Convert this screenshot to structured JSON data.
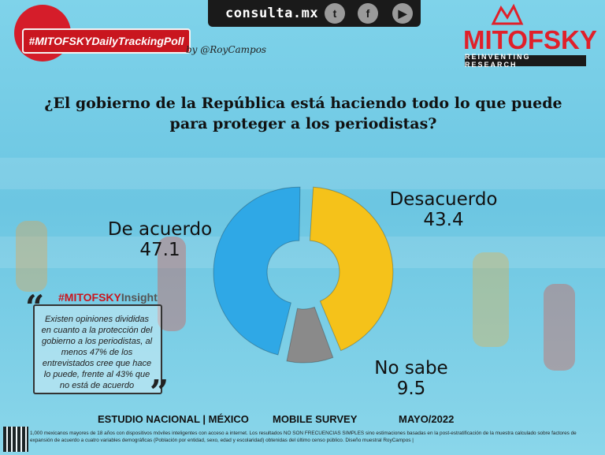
{
  "header": {
    "site": "consulta.mx",
    "social_icons": [
      "twitter-icon",
      "facebook-icon",
      "youtube-icon"
    ],
    "hashtag": "#MITOFSKYDailyTrackingPoll",
    "byline": "by @RoyCampos",
    "logo": "MITOFSKY",
    "logo_sub": "REINVENTING RESEARCH"
  },
  "chart_data": {
    "type": "pie",
    "title": "¿El gobierno de la República está haciendo todo lo que puede para proteger a los periodistas?",
    "donut": true,
    "categories": [
      "Desacuerdo",
      "No sabe",
      "De acuerdo"
    ],
    "values": [
      43.4,
      9.5,
      47.1
    ],
    "colors": [
      "#f5c21a",
      "#8a8a8a",
      "#2fa8e6"
    ],
    "labels": [
      {
        "name": "De acuerdo",
        "value": "47.1"
      },
      {
        "name": "Desacuerdo",
        "value": "43.4"
      },
      {
        "name": "No sabe",
        "value": "9.5"
      }
    ]
  },
  "insight": {
    "title_main": "#MITOFSKY",
    "title_suffix": "Insight",
    "text": "Existen opiniones divididas en cuanto a la protección del gobierno a los periodistas, al menos 47% de los entrevistados cree que hace lo puede, frente al 43% que no está de acuerdo"
  },
  "footer": {
    "study": "ESTUDIO NACIONAL | MÉXICO",
    "method": "MOBILE SURVEY",
    "date": "MAYO/2022",
    "note": "1,000 mexicanos mayores de 18 años con dispositivos móviles inteligentes con acceso a internet. Los resultados NO SON FRECUENCIAS SIMPLES sino estimaciones basadas en la post-estratificación de la muestra calculado sobre factores de expansión de acuerdo a cuatro variables demográficas (Población por entidad, sexo, edad y escolaridad) obtenidas del último censo público. Diseño muestral RoyCampos |"
  }
}
